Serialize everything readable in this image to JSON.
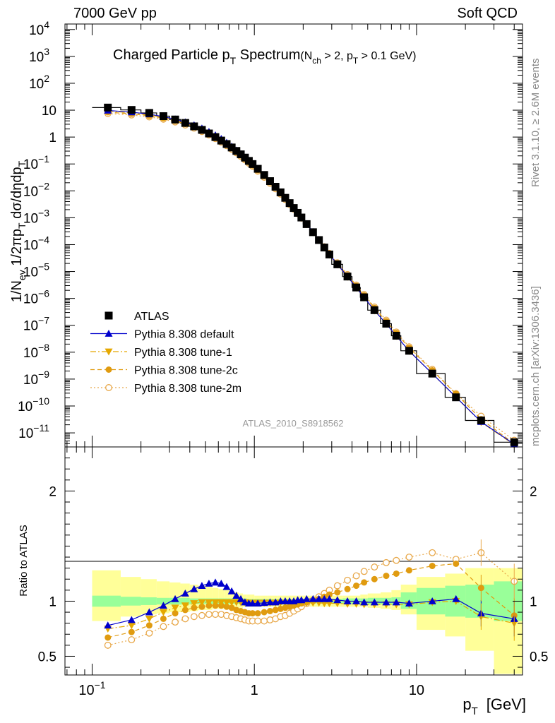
{
  "header": {
    "left": "7000 GeV pp",
    "right": "Soft QCD"
  },
  "side_labels": {
    "rivet": "Rivet 3.1.10, ≥ 2.6M events",
    "mcplots": "mcplots.cern.ch [arXiv:1306.3436]"
  },
  "chart_data": [
    {
      "type": "line",
      "panel": "main",
      "title_main": "Charged Particle p",
      "title_main_sub": "T",
      "title_main_tail": " Spectrum",
      "title_cond_1": "(N",
      "title_cond_sub1": "ch",
      "title_cond_2": " > 2, p",
      "title_cond_sub2": "T",
      "title_cond_3": " > 0.1 GeV)",
      "ylabel": "1/N_ev 1/2πp_T dσ/dηdp_T",
      "watermark": "ATLAS_2010_S8918562",
      "xscale": "log",
      "yscale": "log",
      "xlim": [
        0.068,
        45
      ],
      "ylim": [
        3e-12,
        16000
      ],
      "y_ticks": [
        "10^-11",
        "10^-10",
        "10^-9",
        "10^-8",
        "10^-7",
        "10^-6",
        "10^-5",
        "10^-4",
        "10^-3",
        "10^-2",
        "10^-1",
        "1",
        "10",
        "10^2",
        "10^3",
        "10^4"
      ],
      "legend_position": "bottom-left",
      "bins": [
        0.1,
        0.15,
        0.2,
        0.25,
        0.3,
        0.35,
        0.4,
        0.45,
        0.5,
        0.55,
        0.6,
        0.65,
        0.7,
        0.75,
        0.8,
        0.85,
        0.9,
        0.95,
        1.0,
        1.1,
        1.2,
        1.3,
        1.4,
        1.5,
        1.6,
        1.7,
        1.8,
        1.9,
        2.0,
        2.2,
        2.4,
        2.6,
        2.8,
        3.0,
        3.5,
        4.0,
        4.5,
        5.0,
        6.0,
        7.0,
        8.0,
        10.0,
        15.0,
        20.0,
        30.0,
        50.0
      ],
      "x": [
        0.125,
        0.175,
        0.225,
        0.275,
        0.325,
        0.375,
        0.425,
        0.475,
        0.525,
        0.575,
        0.625,
        0.675,
        0.725,
        0.775,
        0.825,
        0.875,
        0.925,
        0.975,
        1.05,
        1.15,
        1.25,
        1.35,
        1.45,
        1.55,
        1.65,
        1.75,
        1.85,
        1.95,
        2.1,
        2.3,
        2.5,
        2.7,
        2.9,
        3.25,
        3.75,
        4.25,
        4.75,
        5.5,
        6.5,
        7.5,
        9.0,
        12.5,
        17.5,
        25.0,
        40.0
      ],
      "atlas": [
        12.5,
        10.2,
        7.9,
        6.0,
        4.5,
        3.35,
        2.5,
        1.85,
        1.36,
        1.0,
        0.74,
        0.55,
        0.41,
        0.305,
        0.228,
        0.172,
        0.13,
        0.099,
        0.066,
        0.039,
        0.023,
        0.0142,
        0.0088,
        0.0055,
        0.0035,
        0.0023,
        0.00152,
        0.00102,
        0.00058,
        0.00029,
        0.000148,
        7.8e-05,
        4.3e-05,
        1.85e-05,
        6.5e-06,
        2.55e-06,
        1.1e-06,
        3.65e-07,
        1.15e-07,
        4.1e-08,
        1.13e-08,
        1.6e-09,
        2.1e-10,
        2.9e-11,
        4.5e-12
      ],
      "series": [
        {
          "name": "ATLAS",
          "style": "data",
          "color": "#000000"
        },
        {
          "name": "Pythia 8.308 default",
          "style": "solid",
          "marker": "triangle-up",
          "color": "#0000cc"
        },
        {
          "name": "Pythia 8.308 tune-1",
          "style": "dashdot",
          "marker": "triangle-down",
          "color": "#e5a800"
        },
        {
          "name": "Pythia 8.308 tune-2c",
          "style": "dashed",
          "marker": "circle",
          "color": "#e09b10"
        },
        {
          "name": "Pythia 8.308 tune-2m",
          "style": "dotted",
          "marker": "open-circle",
          "color": "#e8a84a"
        }
      ]
    },
    {
      "type": "line",
      "panel": "ratio",
      "ylabel": "Ratio to ATLAS",
      "xlabel": "p",
      "xlabel_sub": "T",
      "xlabel_unit": "[GeV]",
      "xscale": "log",
      "xlim": [
        0.068,
        45
      ],
      "ylim": [
        0.33,
        2.4
      ],
      "x_ticks": [
        {
          "value": 0.1,
          "base": "10",
          "exp": "−1"
        },
        {
          "value": 1,
          "base": "1",
          "exp": ""
        },
        {
          "value": 10,
          "base": "10",
          "exp": ""
        }
      ],
      "y_ticks": [
        "0.5",
        "1",
        "2"
      ],
      "band_inner": [
        [
          0.95,
          1.05
        ],
        [
          0.96,
          1.04
        ],
        [
          0.965,
          1.035
        ],
        [
          0.97,
          1.03
        ],
        [
          0.97,
          1.03
        ],
        [
          0.97,
          1.03
        ],
        [
          0.975,
          1.025
        ],
        [
          0.975,
          1.025
        ],
        [
          0.975,
          1.025
        ],
        [
          0.975,
          1.025
        ],
        [
          0.975,
          1.025
        ],
        [
          0.975,
          1.025
        ],
        [
          0.975,
          1.025
        ],
        [
          0.975,
          1.025
        ],
        [
          0.975,
          1.025
        ],
        [
          0.975,
          1.025
        ],
        [
          0.98,
          1.02
        ],
        [
          0.98,
          1.02
        ],
        [
          0.98,
          1.02
        ],
        [
          0.98,
          1.02
        ],
        [
          0.98,
          1.02
        ],
        [
          0.98,
          1.02
        ],
        [
          0.98,
          1.02
        ],
        [
          0.98,
          1.02
        ],
        [
          0.98,
          1.02
        ],
        [
          0.98,
          1.02
        ],
        [
          0.98,
          1.02
        ],
        [
          0.98,
          1.02
        ],
        [
          0.98,
          1.02
        ],
        [
          0.98,
          1.02
        ],
        [
          0.98,
          1.02
        ],
        [
          0.98,
          1.02
        ],
        [
          0.98,
          1.02
        ],
        [
          0.98,
          1.02
        ],
        [
          0.975,
          1.025
        ],
        [
          0.975,
          1.025
        ],
        [
          0.975,
          1.025
        ],
        [
          0.97,
          1.03
        ],
        [
          0.97,
          1.03
        ],
        [
          0.965,
          1.035
        ],
        [
          0.93,
          1.08
        ],
        [
          0.88,
          1.12
        ],
        [
          0.86,
          1.14
        ],
        [
          0.85,
          1.15
        ],
        [
          0.82,
          1.18
        ]
      ],
      "band_outer": [
        [
          0.82,
          1.28
        ],
        [
          0.86,
          1.22
        ],
        [
          0.88,
          1.2
        ],
        [
          0.89,
          1.18
        ],
        [
          0.9,
          1.17
        ],
        [
          0.9,
          1.16
        ],
        [
          0.91,
          1.15
        ],
        [
          0.92,
          1.14
        ],
        [
          0.92,
          1.13
        ],
        [
          0.93,
          1.12
        ],
        [
          0.93,
          1.11
        ],
        [
          0.93,
          1.1
        ],
        [
          0.93,
          1.09
        ],
        [
          0.94,
          1.08
        ],
        [
          0.94,
          1.07
        ],
        [
          0.95,
          1.06
        ],
        [
          0.95,
          1.06
        ],
        [
          0.95,
          1.06
        ],
        [
          0.95,
          1.05
        ],
        [
          0.95,
          1.05
        ],
        [
          0.95,
          1.05
        ],
        [
          0.95,
          1.05
        ],
        [
          0.95,
          1.05
        ],
        [
          0.95,
          1.05
        ],
        [
          0.95,
          1.05
        ],
        [
          0.95,
          1.05
        ],
        [
          0.95,
          1.05
        ],
        [
          0.95,
          1.05
        ],
        [
          0.95,
          1.05
        ],
        [
          0.95,
          1.05
        ],
        [
          0.95,
          1.05
        ],
        [
          0.95,
          1.05
        ],
        [
          0.95,
          1.05
        ],
        [
          0.95,
          1.05
        ],
        [
          0.95,
          1.05
        ],
        [
          0.95,
          1.05
        ],
        [
          0.95,
          1.06
        ],
        [
          0.94,
          1.07
        ],
        [
          0.93,
          1.08
        ],
        [
          0.92,
          1.1
        ],
        [
          0.88,
          1.15
        ],
        [
          0.74,
          1.22
        ],
        [
          0.68,
          1.25
        ],
        [
          0.55,
          1.3
        ],
        [
          0.34,
          1.3
        ]
      ],
      "series": [
        {
          "name": "Pythia 8.308 default",
          "color": "#0000cc",
          "marker": "triangle-up",
          "dash": "",
          "values": [
            0.78,
            0.83,
            0.9,
            0.96,
            1.02,
            1.07,
            1.11,
            1.14,
            1.16,
            1.17,
            1.16,
            1.13,
            1.09,
            1.05,
            1.02,
            0.99,
            0.98,
            0.98,
            0.98,
            0.985,
            0.99,
            0.99,
            1.0,
            1.0,
            1.0,
            1.0,
            1.01,
            1.01,
            1.02,
            1.02,
            1.02,
            1.02,
            1.02,
            1.01,
            1.0,
            1.0,
            0.99,
            0.99,
            0.99,
            0.99,
            0.98,
            1.0,
            1.02,
            0.89,
            0.84
          ]
        },
        {
          "name": "Pythia 8.308 tune-1",
          "color": "#e5a800",
          "marker": "triangle-down",
          "dash": "8,3,2,3",
          "values": [
            0.75,
            0.78,
            0.84,
            0.9,
            0.94,
            0.96,
            0.98,
            0.99,
            0.99,
            0.99,
            0.99,
            0.99,
            0.99,
            0.99,
            0.99,
            0.99,
            0.985,
            0.985,
            0.985,
            0.985,
            0.985,
            0.985,
            0.985,
            0.985,
            0.985,
            0.985,
            0.985,
            0.985,
            0.985,
            0.985,
            0.985,
            0.98,
            0.98,
            0.98,
            0.975,
            0.975,
            0.97,
            0.97,
            0.97,
            0.97,
            0.97,
            0.99,
            1.0,
            0.86,
            0.8
          ]
        },
        {
          "name": "Pythia 8.308 tune-2c",
          "color": "#e09b10",
          "marker": "circle",
          "dash": "6,4",
          "values": [
            0.67,
            0.72,
            0.78,
            0.84,
            0.89,
            0.92,
            0.94,
            0.95,
            0.96,
            0.96,
            0.96,
            0.95,
            0.94,
            0.92,
            0.91,
            0.9,
            0.89,
            0.89,
            0.89,
            0.9,
            0.91,
            0.92,
            0.93,
            0.94,
            0.95,
            0.96,
            0.97,
            0.98,
            0.99,
            1.0,
            1.02,
            1.04,
            1.06,
            1.08,
            1.11,
            1.14,
            1.17,
            1.2,
            1.23,
            1.25,
            1.28,
            1.32,
            1.34,
            1.12,
            0.87
          ]
        },
        {
          "name": "Pythia 8.308 tune-2m",
          "color": "#e8a84a",
          "marker": "open-circle",
          "dash": "2,3",
          "values": [
            0.6,
            0.65,
            0.71,
            0.77,
            0.81,
            0.84,
            0.86,
            0.87,
            0.88,
            0.88,
            0.88,
            0.87,
            0.86,
            0.85,
            0.84,
            0.83,
            0.82,
            0.82,
            0.82,
            0.82,
            0.83,
            0.84,
            0.86,
            0.87,
            0.89,
            0.91,
            0.93,
            0.95,
            0.98,
            1.01,
            1.04,
            1.07,
            1.1,
            1.14,
            1.19,
            1.23,
            1.27,
            1.31,
            1.35,
            1.37,
            1.4,
            1.44,
            1.38,
            1.44,
            1.18
          ]
        }
      ]
    }
  ]
}
